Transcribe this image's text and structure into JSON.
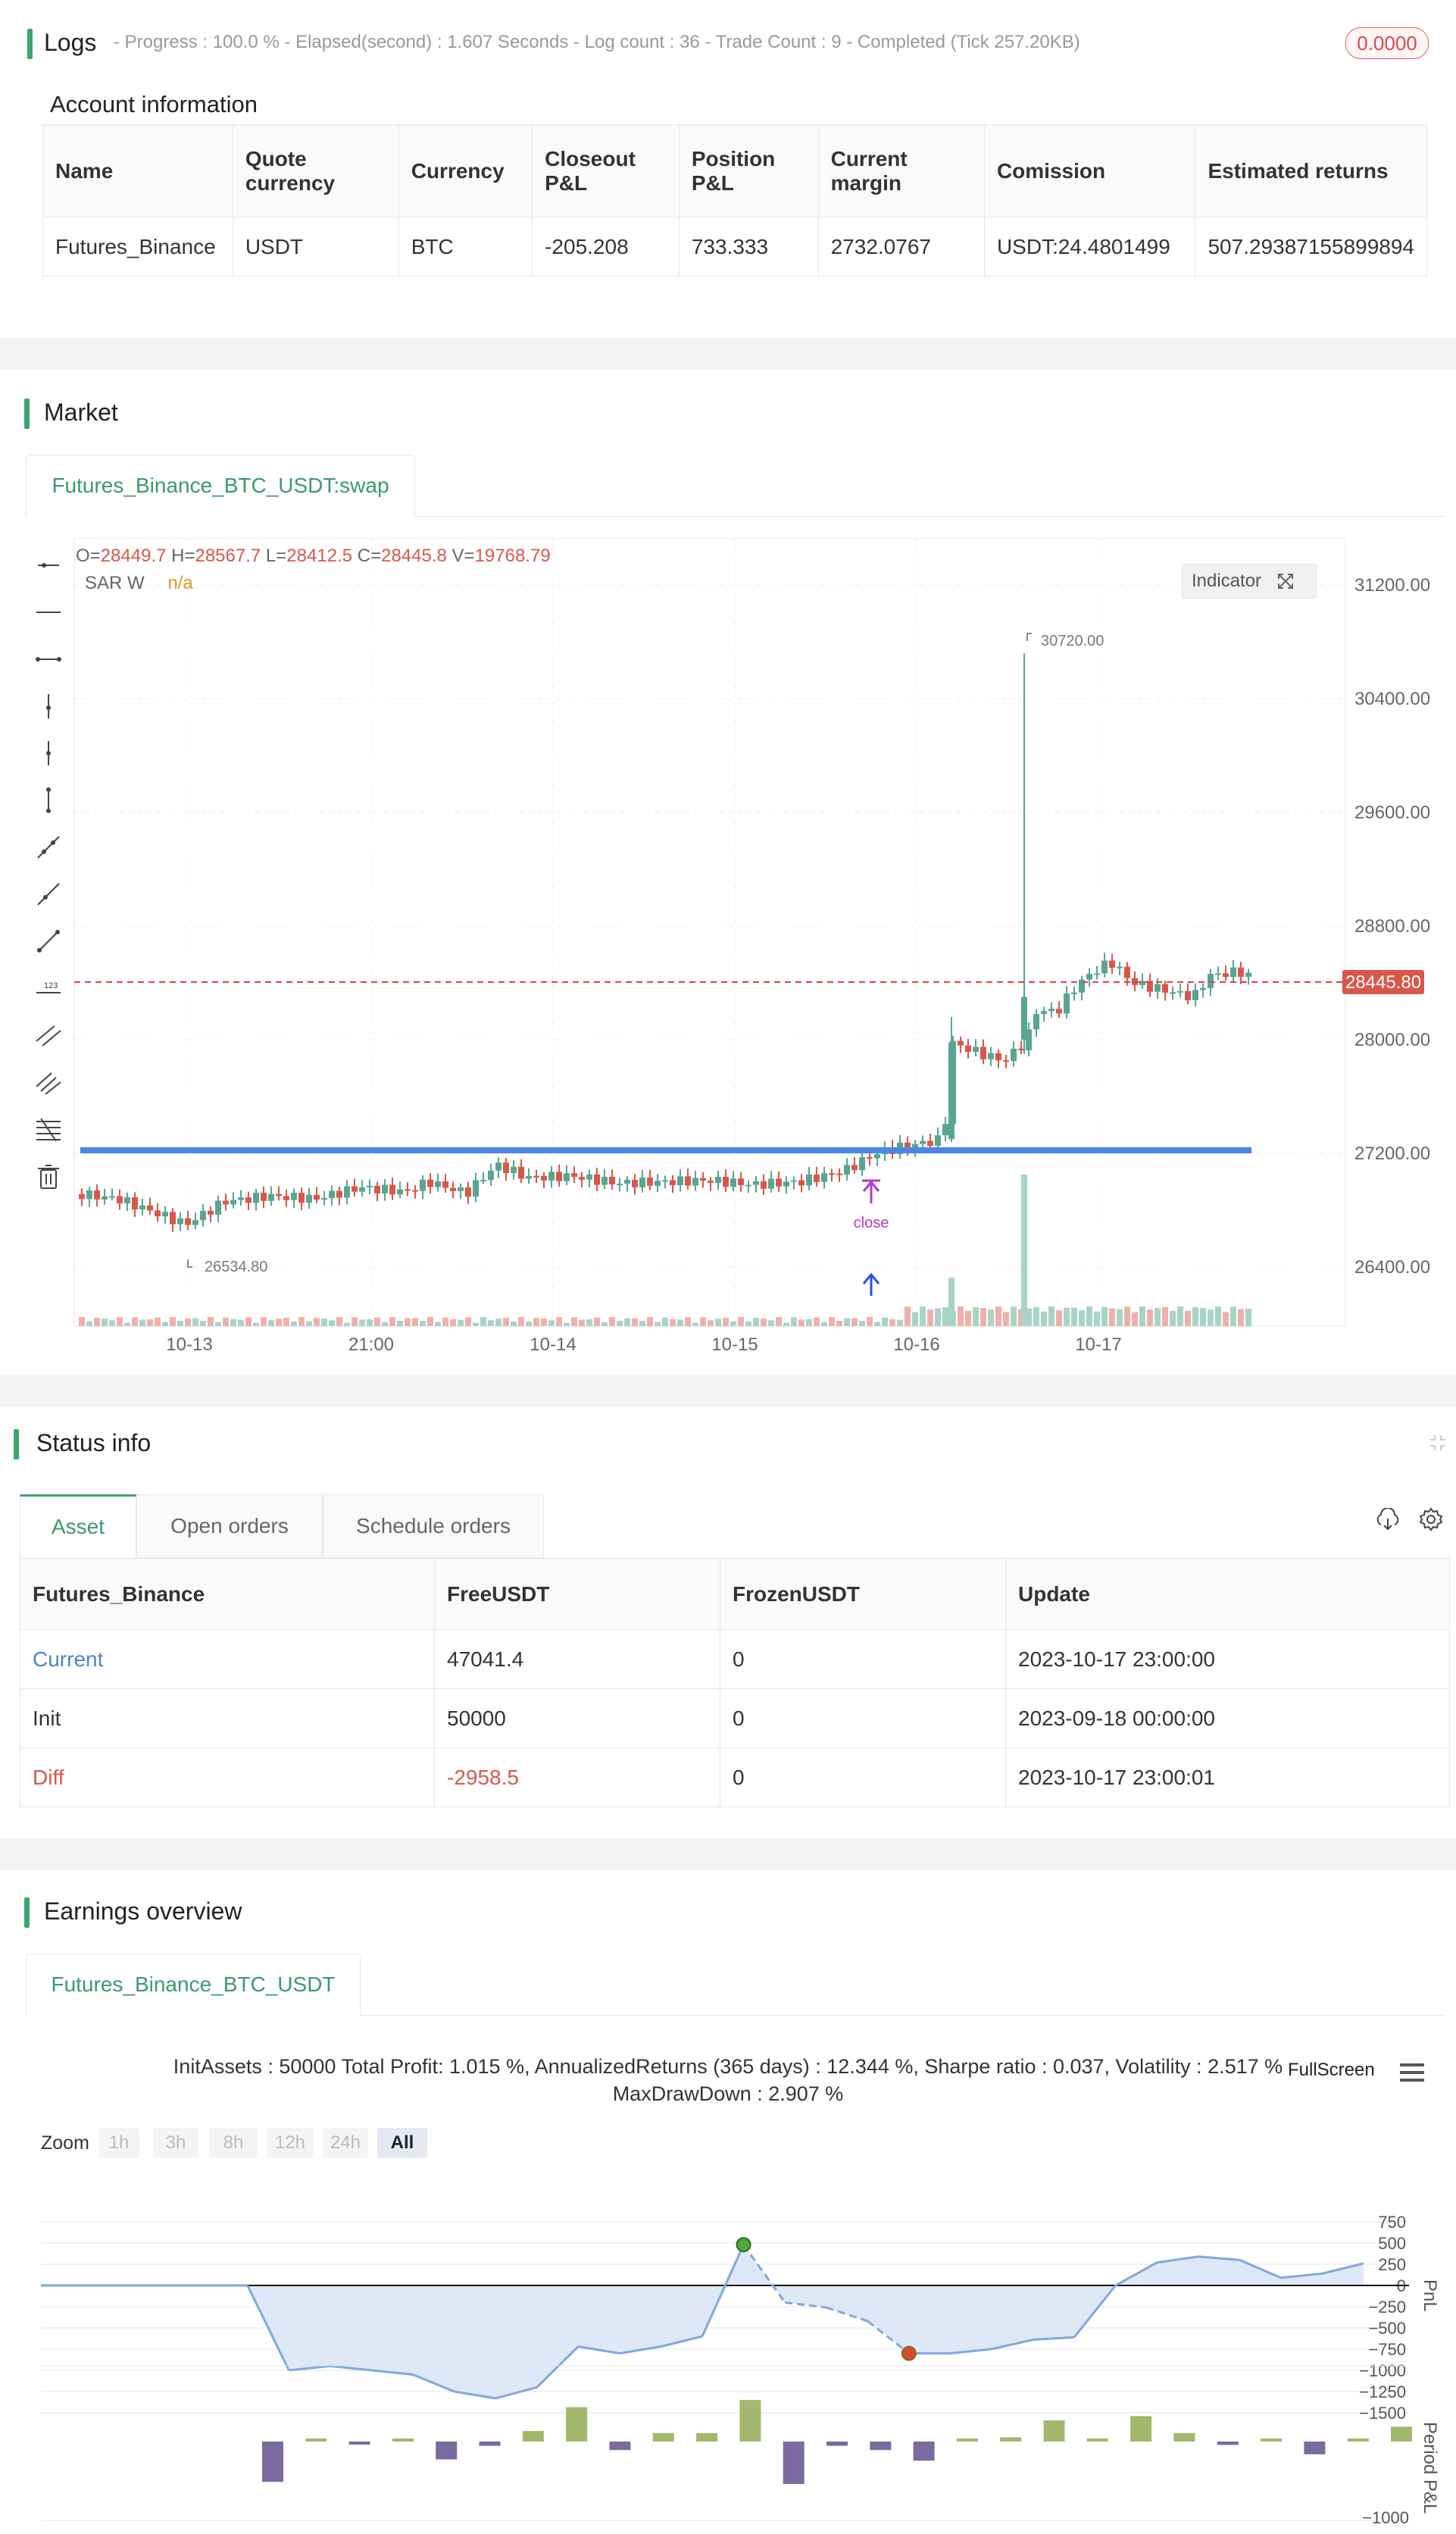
{
  "logs": {
    "title": "Logs",
    "summary": "- Progress : 100.0 % - Elapsed(second) : 1.607  Seconds - Log count : 36 - Trade Count : 9 - Completed (Tick 257.20KB)",
    "badge": "0.0000"
  },
  "account": {
    "title": "Account information",
    "headers": [
      "Name",
      "Quote currency",
      "Currency",
      "Closeout P&L",
      "Position P&L",
      "Current margin",
      "Comission",
      "Estimated returns"
    ],
    "row": [
      "Futures_Binance",
      "USDT",
      "BTC",
      "-205.208",
      "733.333",
      "2732.0767",
      "USDT:24.4801499",
      "507.29387155899894"
    ]
  },
  "market": {
    "title": "Market",
    "tab": "Futures_Binance_BTC_USDT:swap",
    "ohlc": {
      "o_label": "O=",
      "o": "28449.7",
      "h_label": "H=",
      "h": "28567.7",
      "l_label": "L=",
      "l": "28412.5",
      "c_label": "C=",
      "c": "28445.8",
      "v_label": "V=",
      "v": "19768.79"
    },
    "sar_label": "SAR W",
    "sar_value": "n/a",
    "indicator_button": "Indicator",
    "price_axis": [
      "31200.00",
      "30400.00",
      "29600.00",
      "28800.00",
      "28000.00",
      "27200.00",
      "26400.00"
    ],
    "time_axis": [
      "10-13",
      "21:00",
      "10-14",
      "10-15",
      "10-16",
      "10-17"
    ],
    "current_price": "28445.80",
    "high_marker": "30720.00",
    "low_marker": "26534.80",
    "signal_label": "close",
    "colors": {
      "up": "#5aa58f",
      "down": "#d9574a",
      "sar_line": "#4a86e8",
      "price_line": "#e04040"
    }
  },
  "status": {
    "title": "Status info",
    "tabs": [
      "Asset",
      "Open orders",
      "Schedule orders"
    ],
    "headers": [
      "Futures_Binance",
      "FreeUSDT",
      "FrozenUSDT",
      "Update"
    ],
    "rows": [
      [
        "Current",
        "47041.4",
        "0",
        "2023-10-17 23:00:00"
      ],
      [
        "Init",
        "50000",
        "0",
        "2023-09-18 00:00:00"
      ],
      [
        "Diff",
        "-2958.5",
        "0",
        "2023-10-17 23:00:01"
      ]
    ]
  },
  "earnings": {
    "title": "Earnings overview",
    "tab": "Futures_Binance_BTC_USDT",
    "summary_line1": "InitAssets : 50000 Total Profit: 1.015 %, AnnualizedReturns (365 days) : 12.344 %, Sharpe ratio : 0.037, Volatility : 2.517 %",
    "summary_line2": "MaxDrawDown : 2.907 %",
    "fullscreen": "FullScreen",
    "zoom_label": "Zoom",
    "zoom_options": [
      "1h",
      "3h",
      "8h",
      "12h",
      "24h",
      "All"
    ],
    "selected_zoom": "All",
    "pnl_axis_label": "PnL",
    "period_axis_label": "Period P&L",
    "pnl_ticks": [
      "750",
      "500",
      "250",
      "0",
      "−250",
      "−500",
      "−750",
      "−1000",
      "−1250",
      "−1500"
    ],
    "period_tick": "−1000"
  },
  "chart_data": [
    {
      "type": "line",
      "title": "",
      "ylabel": "PnL",
      "ylim": [
        -1500,
        750
      ],
      "values": [
        0,
        0,
        0,
        0,
        0,
        0,
        -1000,
        -950,
        -1000,
        -1050,
        -1250,
        -1330,
        -1200,
        -720,
        -800,
        -720,
        -600,
        480,
        -200,
        -260,
        -420,
        -800,
        -800,
        -750,
        -640,
        -610,
        0,
        270,
        340,
        300,
        90,
        140,
        260
      ]
    },
    {
      "type": "bar",
      "title": "",
      "ylabel": "Period P&L",
      "values": [
        -950,
        60,
        -50,
        0,
        -420,
        -100,
        250,
        810,
        -200,
        200,
        200,
        980,
        -1000,
        -100,
        -200,
        -450,
        0,
        100,
        500,
        0,
        600,
        200,
        -80,
        40,
        -300,
        70,
        350
      ]
    }
  ]
}
